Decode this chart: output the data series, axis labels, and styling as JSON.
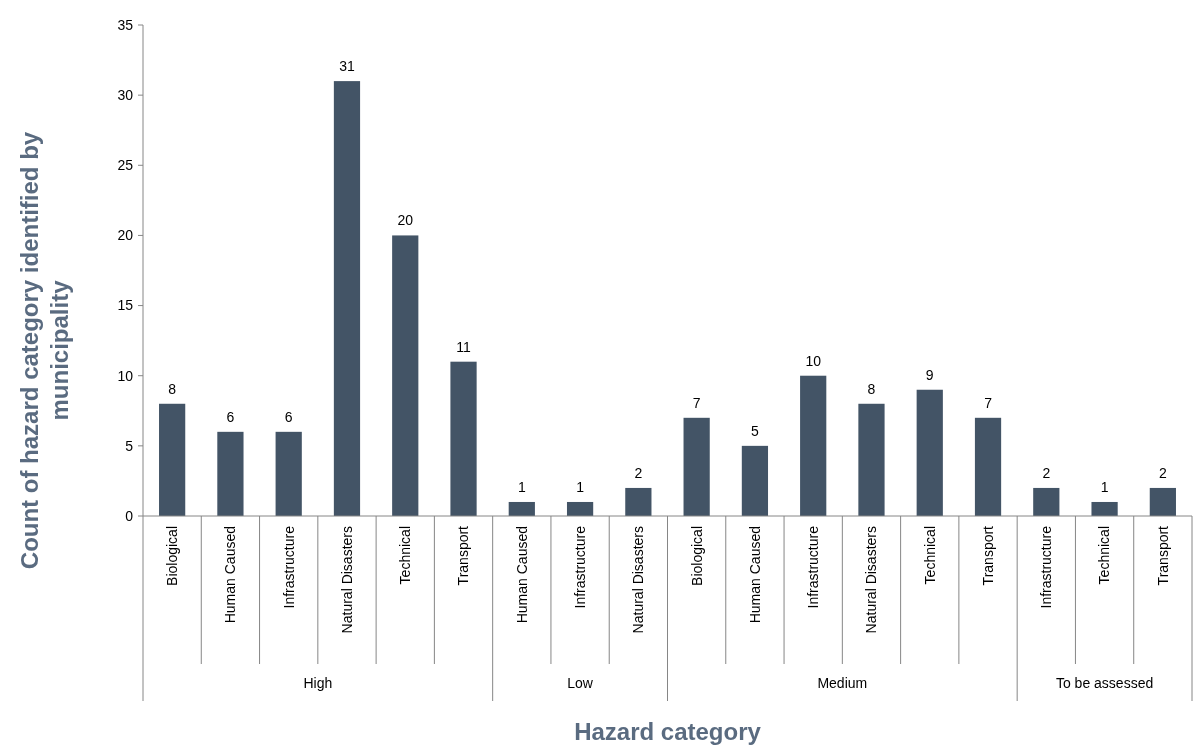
{
  "chart_data": {
    "type": "bar",
    "xlabel": "Hazard category",
    "ylabel": "Count of hazard category identified by municipality",
    "categories": [
      "Biological",
      "Human Caused",
      "Infrastructure",
      "Natural Disasters",
      "Technical",
      "Transport",
      "Human Caused",
      "Infrastructure",
      "Natural Disasters",
      "Biological",
      "Human Caused",
      "Infrastructure",
      "Natural Disasters",
      "Technical",
      "Transport",
      "Infrastructure",
      "Technical",
      "Transport"
    ],
    "values": [
      8,
      6,
      6,
      31,
      20,
      11,
      1,
      1,
      2,
      7,
      5,
      10,
      8,
      9,
      7,
      2,
      1,
      2
    ],
    "color": "#435466",
    "ylim": [
      0,
      35
    ],
    "yticks": [
      0,
      5,
      10,
      15,
      20,
      25,
      30,
      35
    ],
    "data_labels": true,
    "grid": false,
    "annotations": [
      "High",
      "Low",
      "Medium",
      "To be assessed"
    ]
  }
}
